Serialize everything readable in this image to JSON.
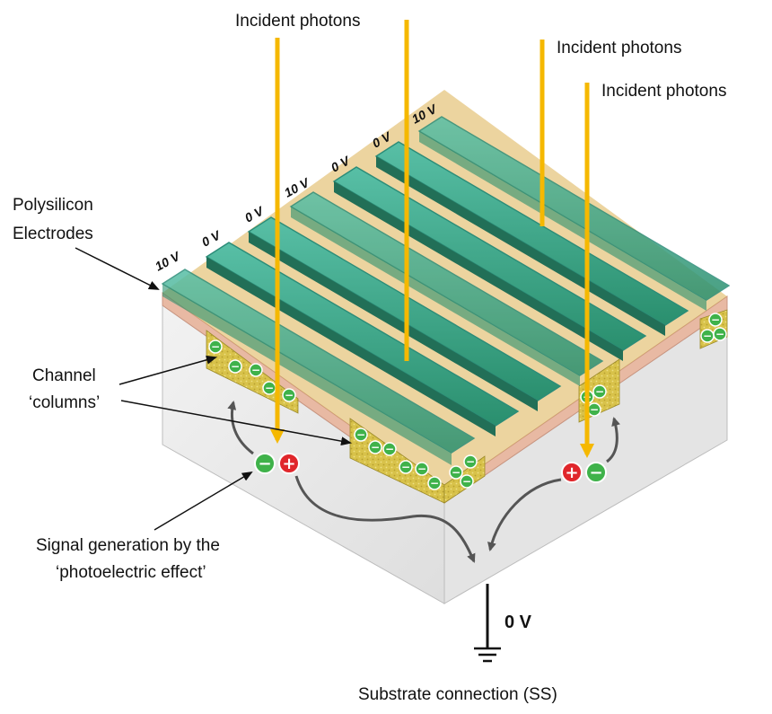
{
  "labels": {
    "photons_1": "Incident photons",
    "photons_2": "Incident photons",
    "photons_3": "Incident photons",
    "electrodes_line1": "Polysilicon",
    "electrodes_line2": "Electrodes",
    "channel_line1": "Channel",
    "channel_line2": "‘columns’",
    "signal_line1": "Signal generation by the",
    "signal_line2": "‘photoelectric effect’",
    "ground_voltage": "0 V",
    "substrate": "Substrate connection (SS)"
  },
  "electrode_voltages": [
    "10 V",
    "0 V",
    "0 V",
    "10 V",
    "0 V",
    "0 V",
    "10 V"
  ],
  "charge_symbols": {
    "electron": "−",
    "hole": "+"
  },
  "colors": {
    "photon": "#f5b800",
    "electrode_fill": "#3aa58a",
    "electrode_edge": "#2b8c78",
    "substrate": "#e9e9e9",
    "channel": "#d8c24a",
    "oxide": "#e8b9a3",
    "electron": "#3fb24a",
    "hole": "#e0262b",
    "arrow": "#555555"
  }
}
